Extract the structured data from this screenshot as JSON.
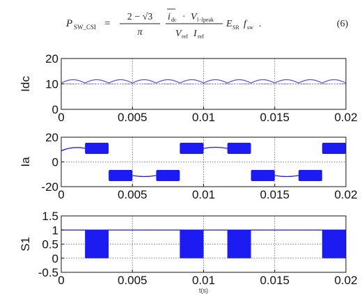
{
  "equation": {
    "lhs": "P",
    "lhs_sub": "SW_CSI",
    "equals": "=",
    "f1_num": "2 − √3",
    "f1_den": "π",
    "f2_num_a": "i",
    "f2_num_a_sub": "dc",
    "f2_num_dot": "·",
    "f2_num_b": "V",
    "f2_num_b_sub": "l−lpeak",
    "f2_den_a": "V",
    "f2_den_a_sub": "ref",
    "f2_den_b": "I",
    "f2_den_b_sub": "ref",
    "tail_a": "E",
    "tail_a_sub": "SR",
    "tail_b": "f",
    "tail_b_sub": "sw",
    "period": ".",
    "number": "(6)"
  },
  "chart_data": [
    {
      "type": "line",
      "ylabel": "Idc",
      "xlabel": "",
      "xlim": [
        0,
        0.02
      ],
      "ylim": [
        0,
        20
      ],
      "xticks": [
        "0",
        "0.005",
        "0.01",
        "0.015",
        "0.02"
      ],
      "yticks": [
        "0",
        "10",
        "20"
      ],
      "grid": "dotted",
      "reference_line": 10,
      "series": [
        {
          "description": "ripple",
          "mean": 11.2,
          "amplitude": 1.3,
          "period": 0.0016667,
          "color": "#4d4df0"
        }
      ]
    },
    {
      "type": "line",
      "ylabel": "Ia",
      "xlabel": "",
      "xlim": [
        0,
        0.02
      ],
      "ylim": [
        -20,
        20
      ],
      "xticks": [
        "0",
        "0.005",
        "0.01",
        "0.015",
        "0.02"
      ],
      "yticks": [
        "-20",
        "0",
        "20"
      ],
      "grid": "dotted",
      "level": 11,
      "pwm_segments": [
        {
          "x0": 0.00167,
          "x1": 0.00333,
          "level": 11,
          "type": "pwm"
        },
        {
          "x0": 0.00333,
          "x1": 0.005,
          "level": -11,
          "type": "pwm"
        },
        {
          "x0": 0.005,
          "x1": 0.00667,
          "level": -11,
          "type": "solid"
        },
        {
          "x0": 0.00667,
          "x1": 0.00833,
          "level": -11,
          "type": "pwm"
        },
        {
          "x0": 0.00833,
          "x1": 0.01,
          "level": 11,
          "type": "pwm"
        },
        {
          "x0": 0.01,
          "x1": 0.01167,
          "level": 11,
          "type": "solid"
        },
        {
          "x0": 0.01167,
          "x1": 0.01333,
          "level": 11,
          "type": "pwm"
        },
        {
          "x0": 0.01333,
          "x1": 0.015,
          "level": -11,
          "type": "pwm"
        },
        {
          "x0": 0.015,
          "x1": 0.01667,
          "level": -11,
          "type": "solid"
        },
        {
          "x0": 0.01667,
          "x1": 0.01833,
          "level": -11,
          "type": "pwm"
        },
        {
          "x0": 0.01833,
          "x1": 0.02,
          "level": 11,
          "type": "pwm"
        }
      ],
      "color": "#1c1cf2"
    },
    {
      "type": "line",
      "ylabel": "S1",
      "xlabel": "t(s)",
      "xlim": [
        0,
        0.02
      ],
      "ylim": [
        -0.5,
        1.5
      ],
      "xticks": [
        "0",
        "0.005",
        "0.01",
        "0.015",
        "0.02"
      ],
      "yticks": [
        "-0.5",
        "0",
        "0.5",
        "1",
        "1.5"
      ],
      "grid": "dotted",
      "high_level": 1,
      "pwm_blocks": [
        {
          "x0": 0.00167,
          "x1": 0.00333
        },
        {
          "x0": 0.00833,
          "x1": 0.01
        },
        {
          "x0": 0.01167,
          "x1": 0.01333
        },
        {
          "x0": 0.01833,
          "x1": 0.02
        }
      ],
      "color": "#1c1cf2"
    }
  ]
}
